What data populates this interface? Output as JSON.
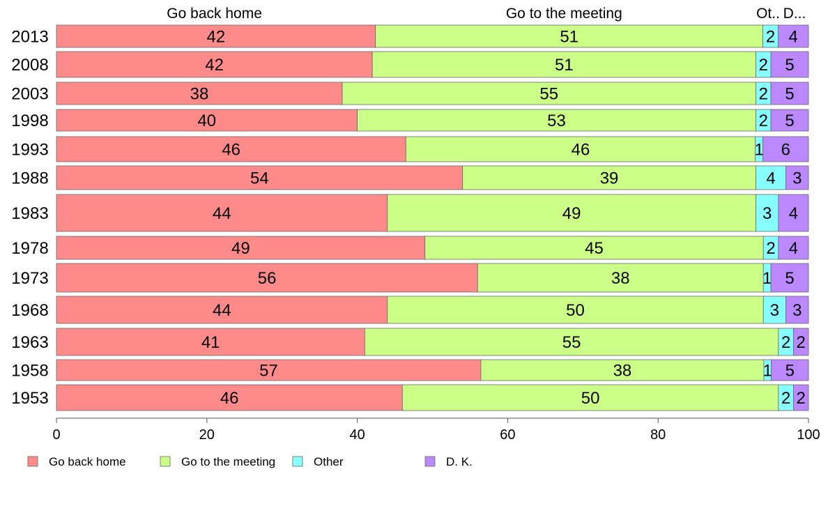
{
  "chart_data": {
    "type": "bar",
    "orientation": "horizontal",
    "stacked": true,
    "categories": [
      "2013",
      "2008",
      "2003",
      "1998",
      "1993",
      "1988",
      "1983",
      "1978",
      "1973",
      "1968",
      "1963",
      "1958",
      "1953"
    ],
    "series": [
      {
        "name": "Go back home",
        "color": "#ff8a8a",
        "values": [
          42,
          42,
          38,
          40,
          46,
          54,
          44,
          49,
          56,
          44,
          41,
          57,
          46
        ]
      },
      {
        "name": "Go to the meeting",
        "color": "#ccff88",
        "values": [
          51,
          51,
          55,
          53,
          46,
          39,
          49,
          45,
          38,
          50,
          55,
          38,
          50
        ]
      },
      {
        "name": "Other",
        "color": "#88ffff",
        "values": [
          2,
          2,
          2,
          2,
          1,
          4,
          3,
          2,
          1,
          3,
          2,
          1,
          2
        ]
      },
      {
        "name": "D. K.",
        "color": "#bb88ff",
        "values": [
          4,
          5,
          5,
          5,
          6,
          3,
          4,
          4,
          5,
          3,
          2,
          5,
          2
        ]
      }
    ],
    "column_headers": [
      "Go back home",
      "Go to the meeting",
      "Ot..",
      "D..."
    ],
    "xticks": [
      0,
      20,
      40,
      60,
      80,
      100
    ],
    "xlim": [
      0,
      100
    ],
    "grid": false,
    "legend_position": "bottom"
  }
}
